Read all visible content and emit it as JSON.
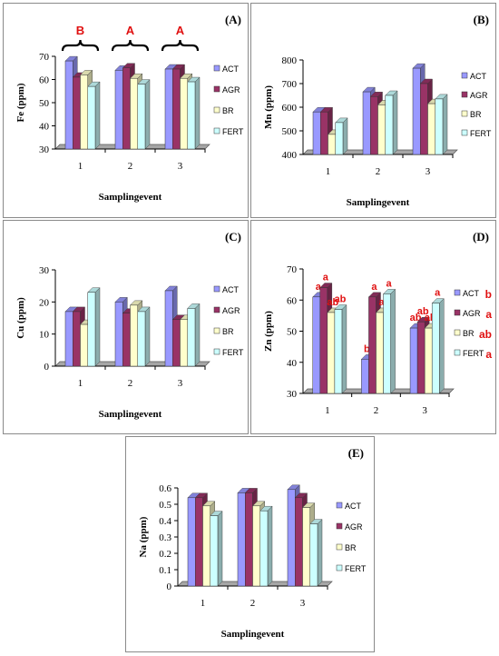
{
  "colors": {
    "ACT": "#9999ff",
    "AGR": "#993366",
    "BR": "#ffffcc",
    "FERT": "#ccffff",
    "significance": "#e01010",
    "floor": "#a6a6a6"
  },
  "chart_data": [
    {
      "panel": "A",
      "type": "bar",
      "title": "(A)",
      "xlabel": "Samplingevent",
      "ylabel": "Fe (ppm)",
      "categories": [
        "1",
        "2",
        "3"
      ],
      "ylim": [
        30,
        70
      ],
      "yticks": [
        30,
        40,
        50,
        60,
        70
      ],
      "legend_position": "right",
      "series": [
        {
          "name": "ACT",
          "values": [
            68,
            64,
            64.5
          ]
        },
        {
          "name": "AGR",
          "values": [
            61,
            65,
            64.5
          ]
        },
        {
          "name": "BR",
          "values": [
            62,
            60.5,
            60.5
          ]
        },
        {
          "name": "FERT",
          "values": [
            57,
            58,
            59
          ]
        }
      ],
      "group_labels": [
        "B",
        "A",
        "A"
      ],
      "series_letters": [],
      "legend_letters": []
    },
    {
      "panel": "B",
      "type": "bar",
      "title": "(B)",
      "xlabel": "Samplingevent",
      "ylabel": "Mn (ppm)",
      "categories": [
        "1",
        "2",
        "3"
      ],
      "ylim": [
        400,
        800
      ],
      "yticks": [
        400,
        500,
        600,
        700,
        800
      ],
      "legend_position": "right",
      "series": [
        {
          "name": "ACT",
          "values": [
            580,
            665,
            765
          ]
        },
        {
          "name": "AGR",
          "values": [
            580,
            645,
            700
          ]
        },
        {
          "name": "BR",
          "values": [
            485,
            610,
            615
          ]
        },
        {
          "name": "FERT",
          "values": [
            535,
            650,
            635
          ]
        }
      ],
      "group_labels": [],
      "series_letters": [],
      "legend_letters": []
    },
    {
      "panel": "C",
      "type": "bar",
      "title": "(C)",
      "xlabel": "Samplingevent",
      "ylabel": "Cu (ppm)",
      "categories": [
        "1",
        "2",
        "3"
      ],
      "ylim": [
        0,
        30
      ],
      "yticks": [
        0,
        10,
        20,
        30
      ],
      "legend_position": "right",
      "series": [
        {
          "name": "ACT",
          "values": [
            17,
            20,
            23.5
          ]
        },
        {
          "name": "AGR",
          "values": [
            17,
            16.5,
            14.5
          ]
        },
        {
          "name": "BR",
          "values": [
            13,
            19,
            14.5
          ]
        },
        {
          "name": "FERT",
          "values": [
            23,
            17,
            18
          ]
        }
      ],
      "group_labels": [],
      "series_letters": [],
      "legend_letters": []
    },
    {
      "panel": "D",
      "type": "bar",
      "title": "(D)",
      "xlabel": "Samplingevent",
      "ylabel": "Zn (ppm)",
      "categories": [
        "1",
        "2",
        "3"
      ],
      "ylim": [
        30,
        70
      ],
      "yticks": [
        30,
        40,
        50,
        60,
        70
      ],
      "legend_position": "right",
      "series": [
        {
          "name": "ACT",
          "values": [
            61,
            41,
            51
          ]
        },
        {
          "name": "AGR",
          "values": [
            64,
            61,
            53
          ]
        },
        {
          "name": "BR",
          "values": [
            56,
            56,
            51
          ]
        },
        {
          "name": "FERT",
          "values": [
            57,
            62,
            59
          ]
        }
      ],
      "group_labels": [],
      "series_letters": [
        [
          "a",
          "b",
          "ab"
        ],
        [
          "a",
          "a",
          "ab"
        ],
        [
          "ab",
          "a",
          "ab"
        ],
        [
          "ab",
          "a",
          "a"
        ]
      ],
      "legend_letters": [
        "b",
        "a",
        "ab",
        "a"
      ]
    },
    {
      "panel": "E",
      "type": "bar",
      "title": "(E)",
      "xlabel": "Samplingevent",
      "ylabel": "Na (ppm)",
      "categories": [
        "1",
        "2",
        "3"
      ],
      "ylim": [
        0,
        0.6
      ],
      "yticks": [
        "0",
        "0.1",
        "0.2",
        "0.3",
        "0.4",
        "0.5",
        "0.6"
      ],
      "legend_position": "right",
      "series": [
        {
          "name": "ACT",
          "values": [
            0.54,
            0.57,
            0.59
          ]
        },
        {
          "name": "AGR",
          "values": [
            0.54,
            0.57,
            0.54
          ]
        },
        {
          "name": "BR",
          "values": [
            0.49,
            0.49,
            0.48
          ]
        },
        {
          "name": "FERT",
          "values": [
            0.43,
            0.46,
            0.38
          ]
        }
      ],
      "group_labels": [],
      "series_letters": [],
      "legend_letters": []
    }
  ]
}
